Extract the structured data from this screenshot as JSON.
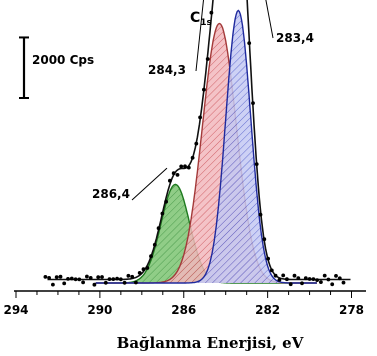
{
  "chart_data": {
    "type": "area",
    "title": "",
    "spectrum_label": {
      "main": "C",
      "sub": "1s"
    },
    "scale_bar_label": "2000 Cps",
    "xlabel": "Bağlanma Enerjisi, eV",
    "ylabel": "",
    "x_reversed": true,
    "xlim": [
      294,
      277.5
    ],
    "x_ticks": [
      "294",
      "290",
      "286",
      "282",
      "278"
    ],
    "x_tick_values": [
      294,
      290,
      286,
      282,
      278
    ],
    "grid": false,
    "scale_bar_counts": 2000,
    "peaks": [
      {
        "label": "286,4",
        "center_eV": 286.4,
        "peak_counts": 1140,
        "fwhm_eV": 1.6,
        "color": "#7cc472",
        "hatch": "#2e8b2e",
        "line": "#1f7a1f"
      },
      {
        "label": "284,3",
        "center_eV": 284.3,
        "peak_counts": 3000,
        "fwhm_eV": 1.9,
        "color": "#f2b8bd",
        "hatch": "#c9484f",
        "line": "#a33a3a"
      },
      {
        "label": "283,4",
        "center_eV": 283.4,
        "peak_counts": 3150,
        "fwhm_eV": 1.4,
        "color": "#c4c9f3",
        "hatch": "#4a56c9",
        "line": "#1f2a9e"
      }
    ],
    "baseline_counts": 40,
    "envelope_color": "#111111",
    "measured_points_color": "#000000"
  }
}
